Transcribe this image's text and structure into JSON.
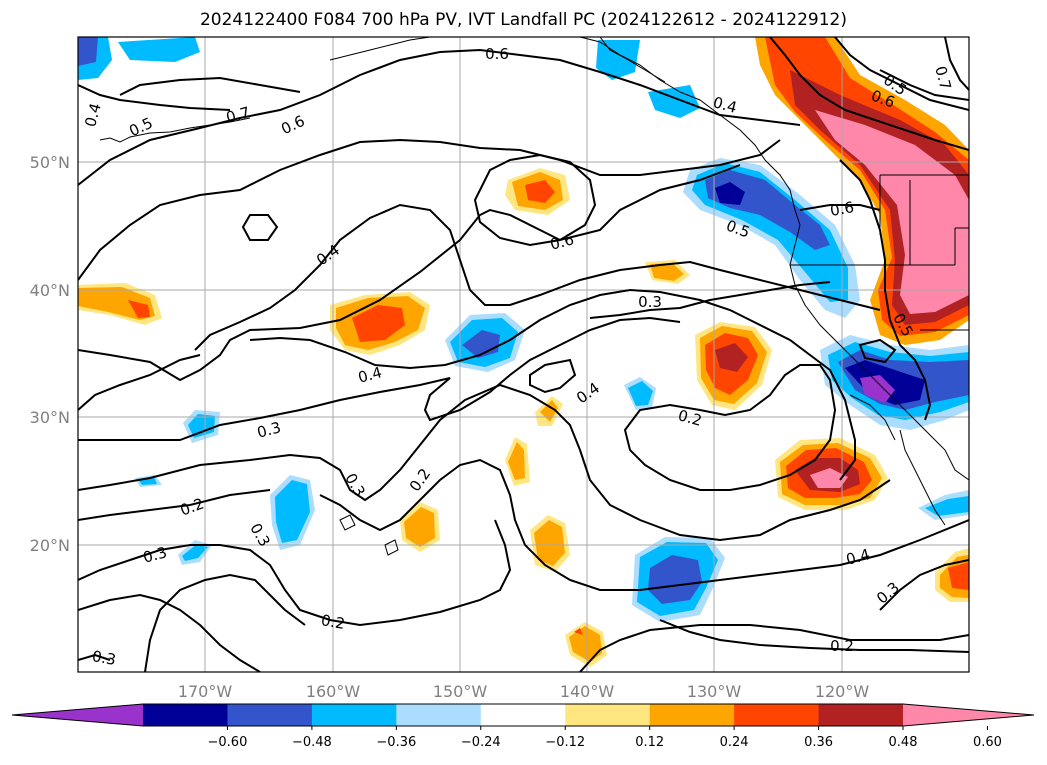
{
  "title": "2024122400 F084 700 hPa PV, IVT Landfall PC (2024122612 - 2024122912)",
  "lat_labels": [
    "50°N",
    "40°N",
    "30°N",
    "20°N"
  ],
  "lon_labels": [
    "170°W",
    "160°W",
    "150°W",
    "140°W",
    "130°W",
    "120°W"
  ],
  "colorbar": {
    "colors": [
      "#9933cc",
      "#000099",
      "#3355cc",
      "#00bbff",
      "#aaddff",
      "#ffffff",
      "#ffe680",
      "#ffa500",
      "#ff4500",
      "#b22222",
      "#ff88aa"
    ],
    "ticks": [
      "−0.60",
      "−0.48",
      "−0.36",
      "−0.24",
      "−0.12",
      "0.12",
      "0.24",
      "0.36",
      "0.48",
      "0.60"
    ]
  },
  "contour_labels": [
    "0.6",
    "0.4",
    "0.5",
    "0.7",
    "0.6",
    "0.4",
    "0.5",
    "0.6",
    "0.7",
    "0.4",
    "0.6",
    "0.5",
    "0.6",
    "0.3",
    "0.4",
    "0.4",
    "0.2",
    "0.5",
    "0.3",
    "0.3",
    "0.2",
    "0.2",
    "0.3",
    "0.3",
    "0.4",
    "0.3",
    "0.2",
    "0.3",
    "0.2"
  ]
}
